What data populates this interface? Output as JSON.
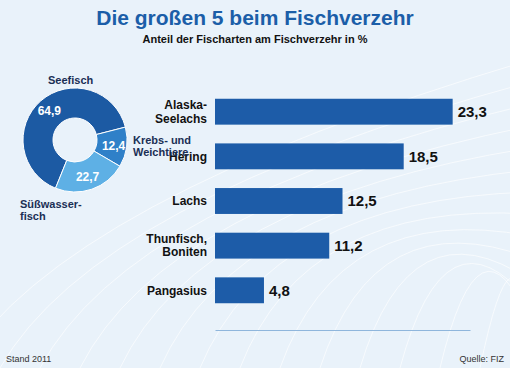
{
  "chart_data": [
    {
      "type": "bar",
      "title": "Die großen 5 beim Fischverzehr",
      "subtitle": "Anteil der Fischarten am Fischverzehr in %",
      "orientation": "horizontal",
      "categories": [
        "Alaska-\nSeelachs",
        "Hering",
        "Lachs",
        "Thunfisch,\nBoniten",
        "Pangasius"
      ],
      "values": [
        23.3,
        18.5,
        12.5,
        11.2,
        4.8
      ],
      "value_labels": [
        "23,3",
        "18,5",
        "12,5",
        "11,2",
        "4,8"
      ],
      "color": "#1d5ca8",
      "xlim": [
        0,
        25
      ],
      "data_labels": true,
      "tick_labels": "y",
      "annotations": [
        "Stand 2011",
        "Quelle: FIZ"
      ]
    },
    {
      "type": "pie",
      "categories": [
        "Seefisch",
        "Krebs- und\nWeichtiere",
        "Süßwasser-\nfisch"
      ],
      "values": [
        64.9,
        12.4,
        22.7
      ],
      "value_labels": [
        "64,9",
        "12,4",
        "22,7"
      ],
      "colors": [
        "#1c5aa3",
        "#2f80c8",
        "#5eb0e5"
      ],
      "data_labels": true
    }
  ]
}
